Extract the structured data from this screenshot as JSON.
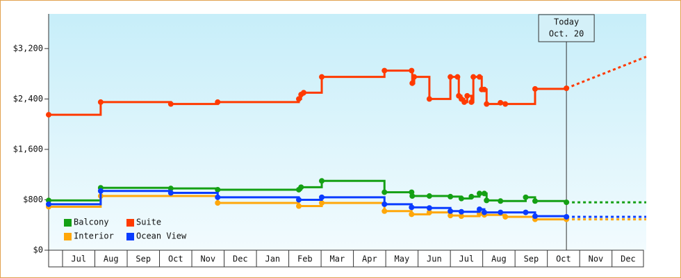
{
  "chart_data": {
    "type": "step-line",
    "xlim": [
      0.57,
      19.06
    ],
    "xticks": [
      {
        "value": 1.5,
        "label": "Jul"
      },
      {
        "value": 2.5,
        "label": "Aug"
      },
      {
        "value": 3.5,
        "label": "Sep"
      },
      {
        "value": 4.5,
        "label": "Oct"
      },
      {
        "value": 5.5,
        "label": "Nov"
      },
      {
        "value": 6.5,
        "label": "Dec"
      },
      {
        "value": 7.5,
        "label": "Jan"
      },
      {
        "value": 8.5,
        "label": "Feb"
      },
      {
        "value": 9.5,
        "label": "Mar"
      },
      {
        "value": 10.5,
        "label": "Apr"
      },
      {
        "value": 11.5,
        "label": "May"
      },
      {
        "value": 12.5,
        "label": "Jun"
      },
      {
        "value": 13.5,
        "label": "Jul"
      },
      {
        "value": 14.5,
        "label": "Aug"
      },
      {
        "value": 15.5,
        "label": "Sep"
      },
      {
        "value": 16.5,
        "label": "Oct"
      },
      {
        "value": 17.5,
        "label": "Nov"
      },
      {
        "value": 18.5,
        "label": "Dec"
      }
    ],
    "ylim": [
      0,
      3750
    ],
    "yticks": [
      {
        "value": 0,
        "label": "$0"
      },
      {
        "value": 800,
        "label": "$800"
      },
      {
        "value": 1600,
        "label": "$1,600"
      },
      {
        "value": 2400,
        "label": "$2,400"
      },
      {
        "value": 3200,
        "label": "$3,200"
      }
    ],
    "annotation": {
      "x": 16.59,
      "lines": [
        "Today",
        "Oct. 20"
      ]
    },
    "forecast_x": [
      16.59,
      19.06
    ],
    "legend": "bottom-left",
    "series": [
      {
        "name": "Balcony",
        "color": "#14a014",
        "x": [
          0.57,
          2.18,
          4.35,
          5.8,
          8.31,
          8.38,
          9.02,
          10.96,
          11.8,
          11.82,
          12.35,
          13.0,
          13.34,
          13.65,
          13.9,
          14.05,
          14.12,
          14.55,
          15.33,
          15.62,
          16.59
        ],
        "values": [
          790,
          990,
          980,
          960,
          960,
          1000,
          1100,
          920,
          920,
          860,
          860,
          850,
          820,
          850,
          900,
          900,
          790,
          780,
          840,
          780,
          760
        ],
        "forecast_values": [
          760,
          760
        ]
      },
      {
        "name": "Suite",
        "color": "#ff3a00",
        "x": [
          0.57,
          2.18,
          4.35,
          5.8,
          8.31,
          8.38,
          8.46,
          9.02,
          10.96,
          11.8,
          11.82,
          11.88,
          12.35,
          13.0,
          13.22,
          13.26,
          13.34,
          13.43,
          13.52,
          13.65,
          13.71,
          13.9,
          13.97,
          14.05,
          14.12,
          14.55,
          14.7,
          15.62,
          16.59
        ],
        "values": [
          2150,
          2350,
          2320,
          2350,
          2400,
          2470,
          2500,
          2750,
          2850,
          2850,
          2650,
          2750,
          2400,
          2750,
          2750,
          2450,
          2400,
          2350,
          2450,
          2350,
          2750,
          2750,
          2550,
          2550,
          2320,
          2340,
          2320,
          2560,
          2570
        ],
        "forecast_values": [
          2570,
          3070
        ]
      },
      {
        "name": "Interior",
        "color": "#ffa70a",
        "x": [
          0.57,
          2.18,
          5.8,
          8.31,
          9.02,
          10.96,
          11.8,
          12.35,
          13.0,
          13.34,
          13.9,
          14.05,
          14.7,
          15.62,
          16.59
        ],
        "values": [
          690,
          860,
          750,
          700,
          750,
          620,
          570,
          600,
          550,
          540,
          580,
          560,
          530,
          490,
          490
        ],
        "forecast_values": [
          490,
          490
        ]
      },
      {
        "name": "Ocean View",
        "color": "#0a3cff",
        "x": [
          0.57,
          2.18,
          4.35,
          5.8,
          8.31,
          9.02,
          10.96,
          11.8,
          12.35,
          13.0,
          13.34,
          13.9,
          14.05,
          14.55,
          15.33,
          15.62,
          16.59
        ],
        "values": [
          730,
          940,
          910,
          840,
          800,
          840,
          730,
          680,
          670,
          620,
          610,
          650,
          600,
          600,
          600,
          540,
          530
        ],
        "forecast_values": [
          530,
          530
        ]
      }
    ]
  }
}
